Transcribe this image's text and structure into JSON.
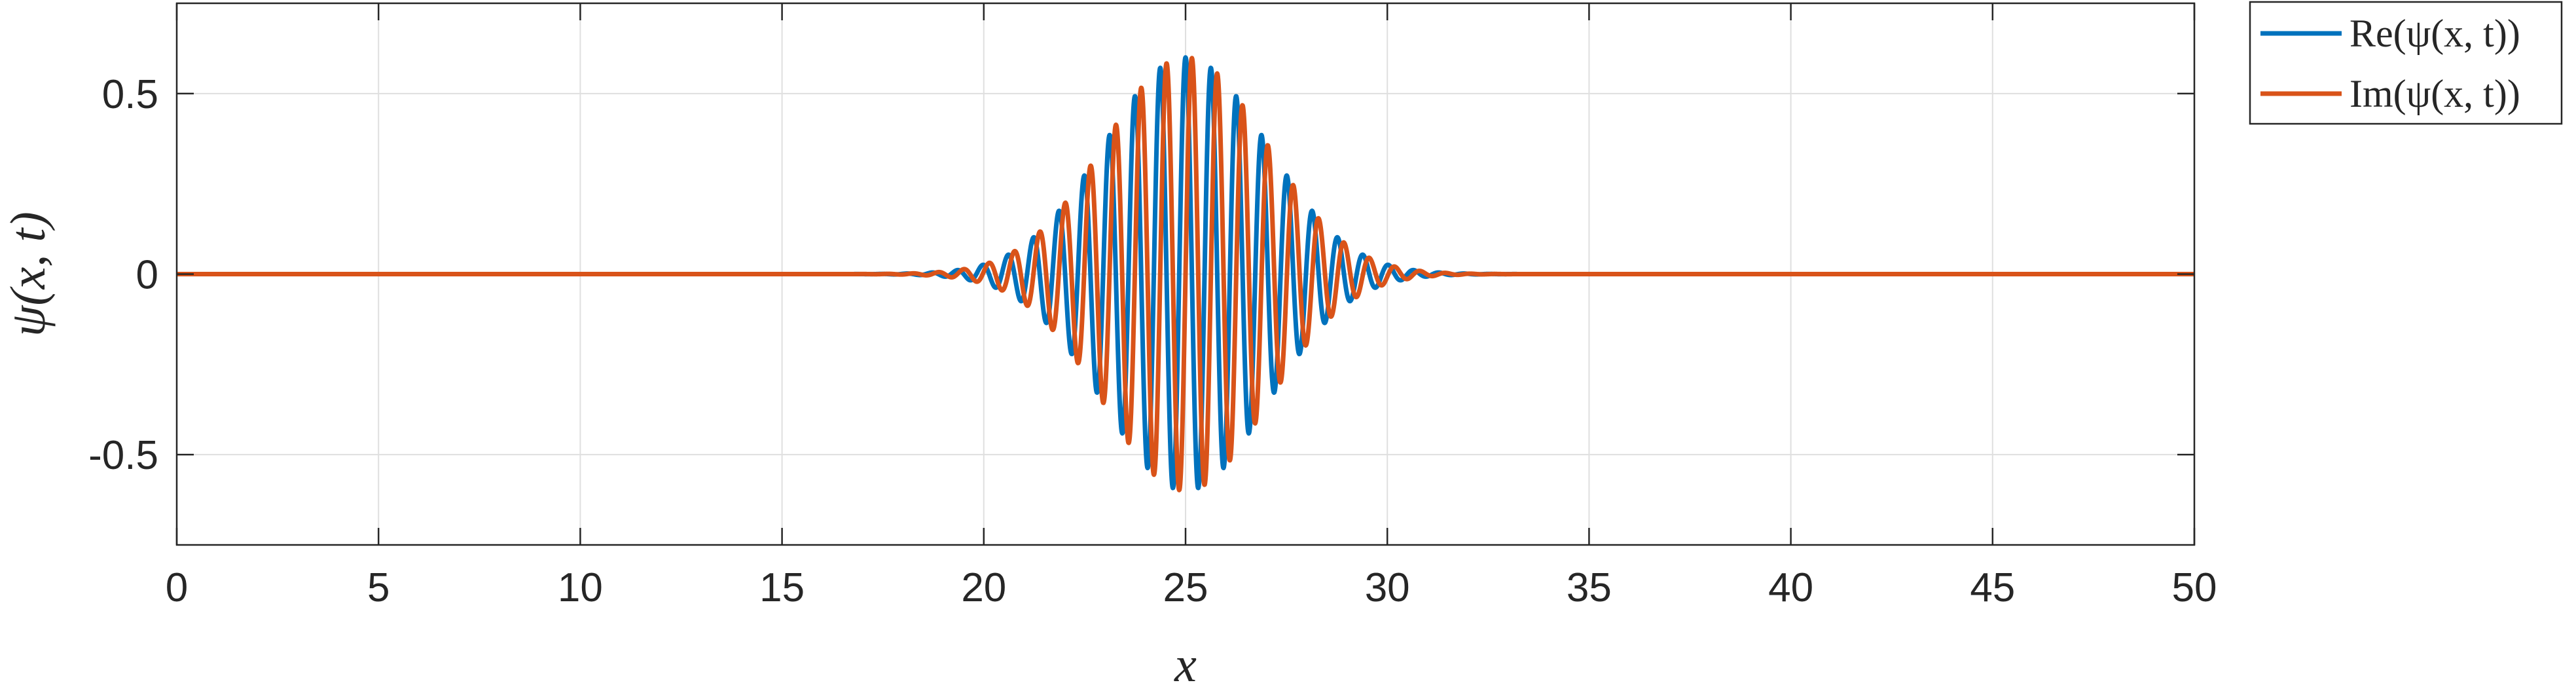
{
  "chart_data": {
    "type": "line",
    "title": "",
    "xlabel": "x",
    "ylabel": "ψ(x, t)",
    "xlim": [
      0,
      50
    ],
    "ylim": [
      -0.75,
      0.75
    ],
    "grid": true,
    "legend_position": "outside-top-right",
    "x_ticks": [
      0,
      5,
      10,
      15,
      20,
      25,
      30,
      35,
      40,
      45,
      50
    ],
    "x_tick_labels": [
      "0",
      "5",
      "10",
      "15",
      "20",
      "25",
      "30",
      "35",
      "40",
      "45",
      "50"
    ],
    "y_ticks": [
      -0.5,
      0,
      0.5
    ],
    "y_tick_labels": [
      "-0.5",
      "0",
      "0.5"
    ],
    "packet": {
      "center": 25,
      "amplitude": 0.6,
      "width": 2.0,
      "wavenumber": 10
    },
    "series": [
      {
        "name": "Re(ψ(x, t))",
        "color": "#0072BD",
        "component": "real"
      },
      {
        "name": "Im(ψ(x, t))",
        "color": "#D95319",
        "component": "imag"
      }
    ]
  }
}
